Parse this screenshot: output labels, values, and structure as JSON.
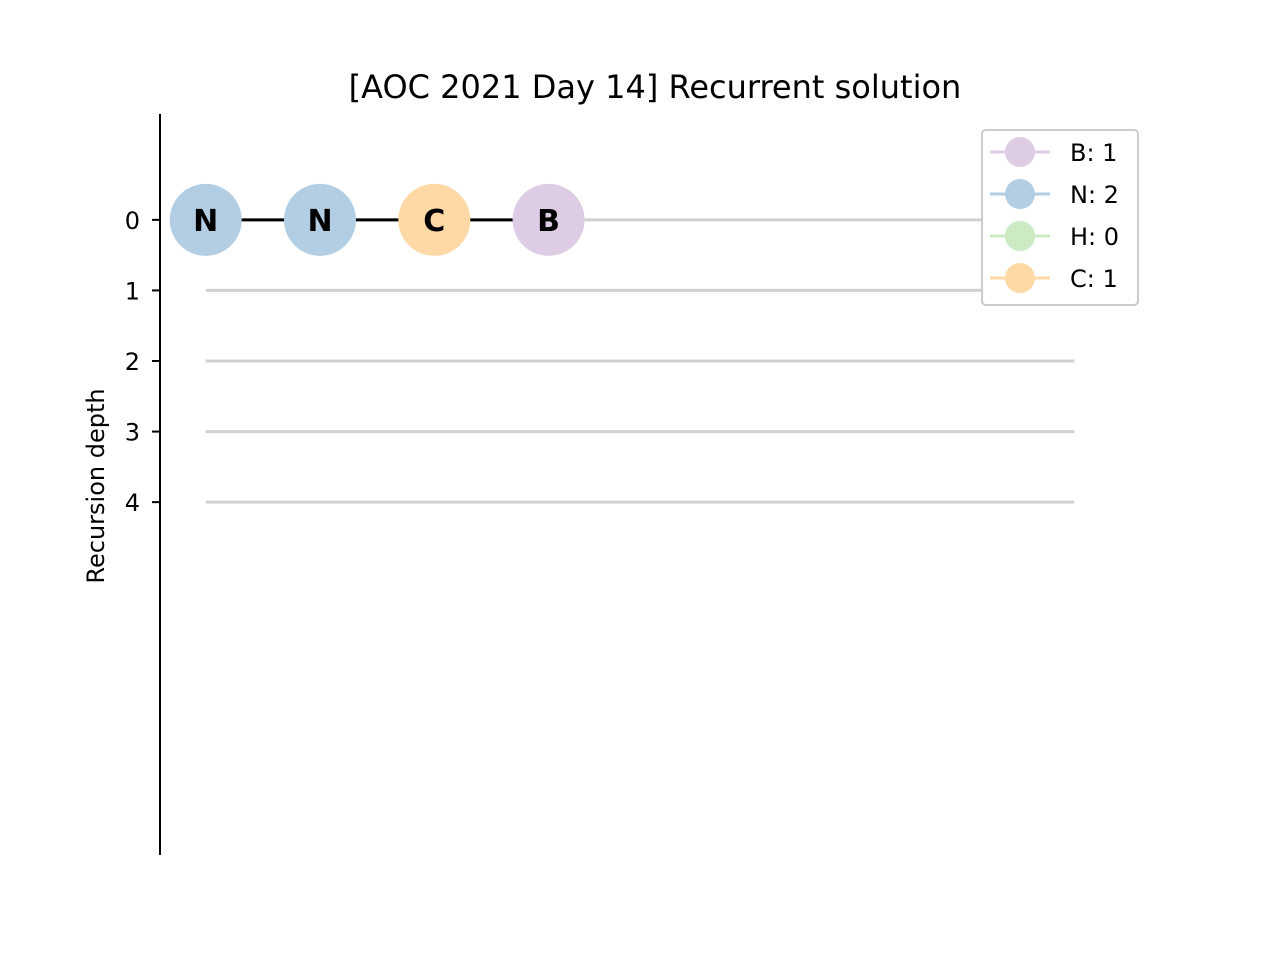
{
  "chart_data": {
    "type": "line",
    "title": "[AOC 2021 Day 14] Recurrent solution",
    "xlabel": "",
    "ylabel": "Recursion depth",
    "y_ticks": [
      0,
      1,
      2,
      3,
      4
    ],
    "ylim": [
      -1.5,
      9.0
    ],
    "y_axis_inverted": true,
    "grid": "horizontal reference line at each depth",
    "depth_line_color": "#d0d0d0",
    "edge_color": "#000000",
    "nodes": [
      {
        "label": "N",
        "x": 0,
        "depth": 0,
        "color": "#b3cde3"
      },
      {
        "label": "N",
        "x": 1,
        "depth": 0,
        "color": "#b3cde3"
      },
      {
        "label": "C",
        "x": 2,
        "depth": 0,
        "color": "#fed9a6"
      },
      {
        "label": "B",
        "x": 3,
        "depth": 0,
        "color": "#decbe4"
      }
    ],
    "edges": [
      [
        0,
        1
      ],
      [
        1,
        2
      ],
      [
        2,
        3
      ]
    ],
    "xlim": [
      -0.4,
      8.0
    ],
    "legend_position": "top-right",
    "legend": [
      {
        "label": "B: 1",
        "color": "#decbe4"
      },
      {
        "label": "N: 2",
        "color": "#b3cde3"
      },
      {
        "label": "H: 0",
        "color": "#ccebc5"
      },
      {
        "label": "C: 1",
        "color": "#fed9a6"
      }
    ]
  }
}
